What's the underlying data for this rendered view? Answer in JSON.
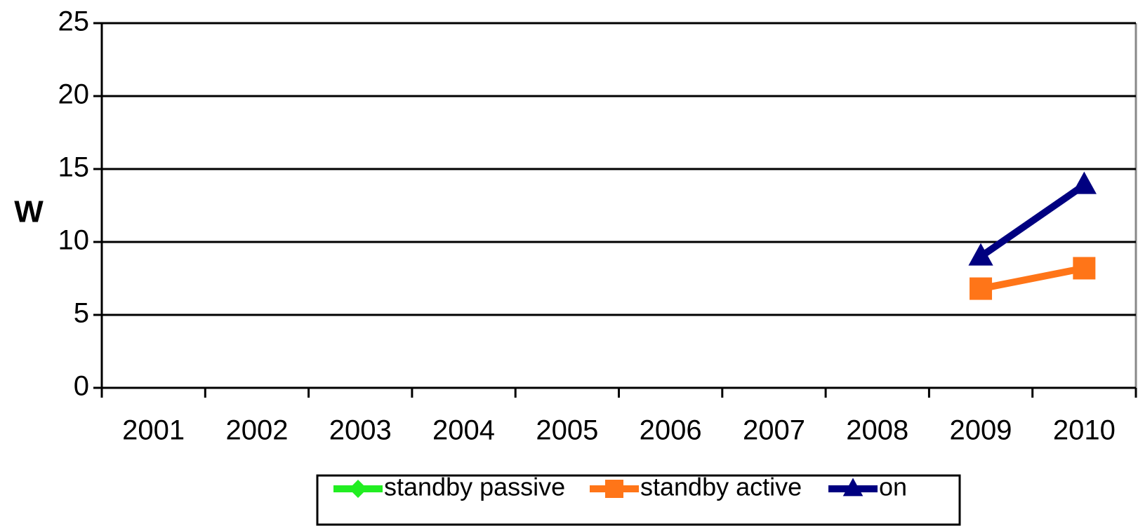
{
  "chart_data": {
    "type": "line",
    "y_label": "W",
    "categories": [
      "2001",
      "2002",
      "2003",
      "2004",
      "2005",
      "2006",
      "2007",
      "2008",
      "2009",
      "2010"
    ],
    "series": [
      {
        "name": "standby passive",
        "color": "#22ee22",
        "marker": "diamond",
        "values": [
          null,
          null,
          null,
          null,
          null,
          null,
          null,
          null,
          null,
          null
        ]
      },
      {
        "name": "standby active",
        "color": "#ff7518",
        "marker": "square",
        "values": [
          null,
          null,
          null,
          null,
          null,
          null,
          null,
          null,
          6.8,
          8.2
        ]
      },
      {
        "name": "on",
        "color": "#000080",
        "marker": "triangle",
        "values": [
          null,
          null,
          null,
          null,
          null,
          null,
          null,
          null,
          9,
          13.9
        ]
      }
    ],
    "ylim": [
      0,
      25
    ],
    "yticks": [
      0,
      5,
      10,
      15,
      20,
      25
    ],
    "grid": true,
    "legend": "bottom"
  }
}
